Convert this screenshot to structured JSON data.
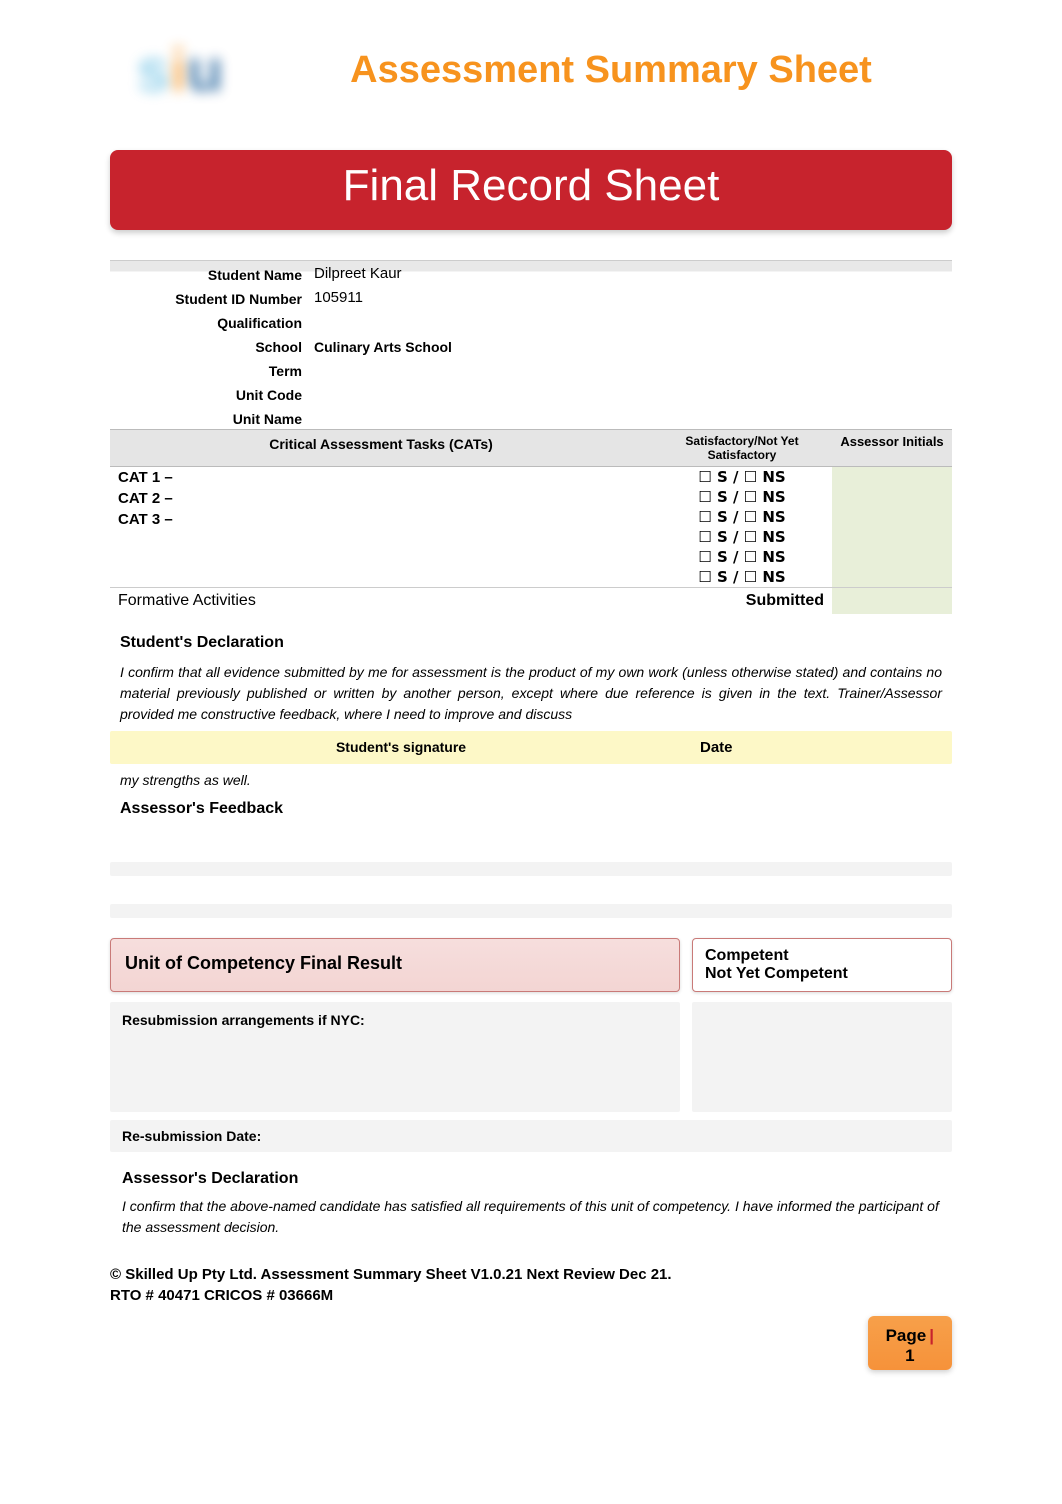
{
  "header": {
    "sheet_title": "Assessment Summary Sheet",
    "banner": "Final Record Sheet"
  },
  "form": {
    "labels": {
      "student_name": "Student Name",
      "student_id": "Student ID Number",
      "qualification": "Qualification",
      "school": "School",
      "term": "Term",
      "unit_code": "Unit Code",
      "unit_name": "Unit Name"
    },
    "values": {
      "student_name": "Dilpreet Kaur",
      "student_id": "105911",
      "qualification": "",
      "school": "Culinary Arts School",
      "term": "",
      "unit_code": "",
      "unit_name": ""
    }
  },
  "cats": {
    "header_col1": "Critical Assessment Tasks (CATs)",
    "header_col2": "Satisfactory/Not Yet Satisfactory",
    "header_col3": "Assessor Initials",
    "items": [
      {
        "label": "CAT 1 –"
      },
      {
        "label": "CAT 2 –"
      },
      {
        "label": "CAT 3 –"
      }
    ],
    "sns_text": "☐ S / ☐  NS",
    "sns_rows": 6,
    "formative_label": "Formative Activities",
    "submitted_label": "Submitted"
  },
  "student_declaration": {
    "title": "Student's Declaration",
    "text": "I confirm that all evidence submitted by me for assessment is the product of my own work (unless otherwise stated) and contains no material previously published or written by another person, except where due reference is given in the text. Trainer/Assessor provided me constructive feedback, where I need to improve and discuss",
    "signature_label": "Student's signature",
    "date_label": "Date",
    "strengths_text": "my strengths as well."
  },
  "assessor_feedback_title": "Assessor's Feedback",
  "final_result": {
    "title": "Unit of Competency Final Result",
    "competent": "Competent",
    "nyc": "Not Yet Competent"
  },
  "resubmission": {
    "title": "Resubmission arrangements if NYC:",
    "date_label": "Re-submission Date:"
  },
  "assessor_declaration": {
    "title": "Assessor's Declaration",
    "text": "I confirm that the above-named candidate has satisfied all requirements of this unit of competency. I have informed the participant of the assessment decision."
  },
  "footer": {
    "line1": "© Skilled Up Pty Ltd. Assessment Summary Sheet V1.0.21 Next Review Dec 21.",
    "line2": "RTO # 40471 CRICOS # 03666M",
    "page_label": "Page",
    "page_num": "1"
  },
  "colors": {
    "accent_orange": "#f7931e",
    "banner_red": "#c7232d",
    "highlight_yellow": "#fdf8c7",
    "result_pink": "#f6dedd",
    "initials_green": "#e8efd9"
  }
}
